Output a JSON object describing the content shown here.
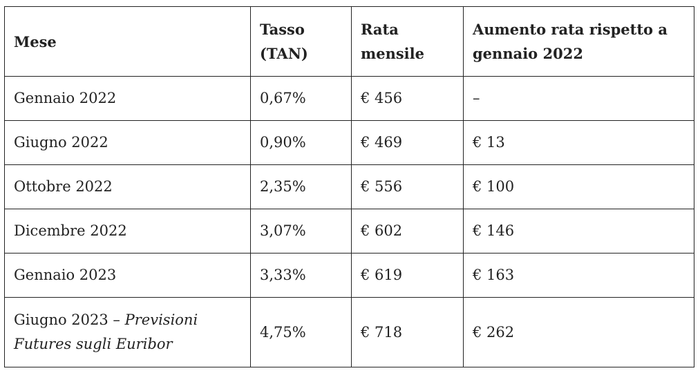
{
  "table": {
    "headers": {
      "month": "Mese",
      "rate_line1": "Tasso",
      "rate_line2": "(TAN)",
      "payment_line1": "Rata",
      "payment_line2": "mensile",
      "increase_line1": "Aumento rata rispetto a",
      "increase_line2": "gennaio 2022"
    },
    "rows": [
      {
        "month": "Gennaio 2022",
        "rate": "0,67%",
        "payment": "€ 456",
        "increase": "–"
      },
      {
        "month": "Giugno 2022",
        "rate": "0,90%",
        "payment": "€ 469",
        "increase": "€ 13"
      },
      {
        "month": "Ottobre 2022",
        "rate": "2,35%",
        "payment": "€ 556",
        "increase": "€ 100"
      },
      {
        "month": "Dicembre 2022",
        "rate": "3,07%",
        "payment": "€ 602",
        "increase": "€ 146"
      },
      {
        "month": "Gennaio 2023",
        "rate": "3,33%",
        "payment": "€ 619",
        "increase": "€ 163"
      },
      {
        "month": "Giugno 2023 – ",
        "month_note": "Previsioni Futures sugli Euribor",
        "rate": "4,75%",
        "payment": "€ 718",
        "increase": "€ 262"
      }
    ]
  }
}
